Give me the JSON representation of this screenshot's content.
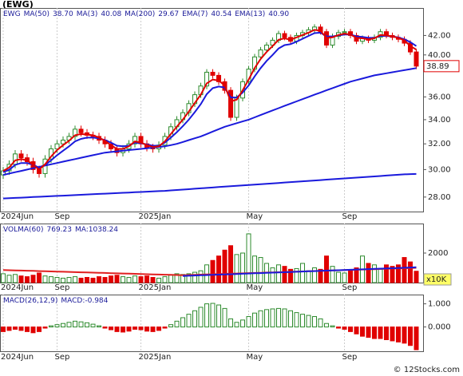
{
  "title": "(EWG)",
  "footer": "© 12Stocks.com",
  "chart_data": [
    {
      "type": "candlestick",
      "log_scale": true,
      "xgrid": true,
      "up_color": "#2e8b2e",
      "down_color": "#e00000",
      "header": [
        "EWG",
        "MA(50)",
        "38.70",
        "MA(3)",
        "40.08",
        "MA(200)",
        "29.67",
        "EMA(7)",
        "40.54",
        "EMA(13)",
        "40.90"
      ],
      "categories": [
        "2024Jun",
        null,
        null,
        null,
        null,
        null,
        null,
        null,
        null,
        "Sep",
        null,
        null,
        null,
        null,
        null,
        null,
        null,
        null,
        null,
        null,
        null,
        null,
        null,
        "2025Jan",
        null,
        null,
        null,
        null,
        null,
        null,
        null,
        null,
        null,
        null,
        null,
        null,
        null,
        null,
        null,
        null,
        null,
        "May",
        null,
        null,
        null,
        null,
        null,
        null,
        null,
        null,
        null,
        null,
        null,
        null,
        null,
        null,
        null,
        "Sep",
        null,
        null,
        null,
        null,
        null,
        null,
        null,
        null,
        null,
        null,
        null,
        null
      ],
      "open": [
        29.6,
        29.9,
        30.4,
        31.2,
        30.9,
        30.6,
        30.0,
        29.7,
        30.8,
        31.6,
        32.0,
        32.3,
        32.6,
        33.2,
        32.9,
        32.7,
        32.6,
        32.3,
        32.0,
        31.6,
        31.3,
        31.6,
        32.0,
        32.6,
        32.0,
        31.7,
        31.6,
        31.9,
        32.6,
        33.4,
        34.0,
        34.6,
        35.4,
        36.2,
        37.0,
        38.3,
        38.0,
        37.4,
        36.6,
        34.2,
        35.9,
        37.4,
        38.6,
        39.8,
        40.5,
        41.0,
        41.5,
        42.2,
        41.8,
        41.4,
        42.0,
        42.3,
        42.6,
        42.9,
        42.4,
        41.0,
        41.9,
        42.3,
        42.4,
        42.0,
        41.4,
        41.7,
        41.5,
        41.8,
        42.4,
        42.0,
        41.8,
        41.6,
        41.2,
        40.3
      ],
      "high": [
        30.2,
        30.7,
        31.5,
        31.5,
        31.2,
        30.9,
        30.3,
        31.1,
        31.9,
        32.3,
        32.6,
        32.9,
        33.5,
        33.5,
        33.2,
        33.0,
        32.9,
        32.6,
        32.3,
        31.9,
        31.9,
        32.3,
        32.9,
        32.9,
        32.3,
        32.0,
        32.2,
        32.9,
        33.7,
        34.3,
        34.9,
        35.7,
        36.5,
        37.3,
        38.6,
        38.6,
        38.3,
        37.7,
        36.9,
        36.2,
        37.7,
        38.9,
        40.1,
        40.8,
        41.3,
        41.8,
        42.5,
        42.5,
        42.1,
        42.3,
        42.6,
        42.9,
        43.2,
        43.2,
        42.7,
        42.2,
        42.6,
        42.7,
        42.7,
        42.3,
        42.0,
        42.0,
        42.1,
        42.7,
        42.7,
        42.3,
        42.1,
        41.9,
        41.5,
        40.6
      ],
      "low": [
        29.3,
        29.6,
        30.1,
        30.6,
        30.3,
        29.7,
        29.4,
        29.4,
        30.5,
        31.3,
        31.7,
        32.0,
        32.3,
        32.6,
        32.4,
        32.3,
        32.0,
        31.7,
        31.3,
        31.0,
        31.0,
        31.3,
        31.7,
        31.7,
        31.4,
        31.3,
        31.3,
        31.6,
        32.3,
        33.1,
        33.7,
        34.3,
        35.1,
        35.9,
        36.7,
        37.7,
        37.1,
        36.3,
        33.9,
        33.9,
        35.6,
        37.1,
        38.3,
        39.5,
        40.2,
        40.7,
        41.2,
        41.5,
        41.1,
        41.1,
        41.7,
        42.0,
        42.3,
        42.1,
        40.7,
        40.7,
        41.6,
        42.0,
        41.7,
        41.1,
        41.1,
        41.2,
        41.2,
        41.5,
        41.7,
        41.5,
        41.3,
        40.9,
        40.0,
        38.6
      ],
      "close": [
        29.9,
        30.4,
        31.2,
        30.9,
        30.6,
        30.0,
        29.7,
        30.8,
        31.6,
        32.0,
        32.3,
        32.6,
        33.2,
        32.9,
        32.7,
        32.6,
        32.3,
        32.0,
        31.6,
        31.3,
        31.6,
        32.0,
        32.6,
        32.0,
        31.7,
        31.6,
        31.9,
        32.6,
        33.4,
        34.0,
        34.6,
        35.4,
        36.2,
        37.0,
        38.3,
        38.0,
        37.4,
        36.6,
        34.2,
        35.9,
        37.4,
        38.6,
        39.8,
        40.5,
        41.0,
        41.5,
        42.2,
        41.8,
        41.4,
        42.0,
        42.3,
        42.6,
        42.9,
        42.4,
        41.0,
        41.9,
        42.3,
        42.4,
        42.0,
        41.4,
        41.7,
        41.5,
        41.8,
        42.4,
        42.0,
        41.8,
        41.6,
        41.2,
        40.3,
        38.89
      ],
      "series": [
        {
          "name": "MA(200)",
          "color": "#1a1adc",
          "width": 2,
          "values": [
            27.9,
            27.92,
            27.94,
            27.96,
            27.98,
            28.0,
            28.02,
            28.04,
            28.06,
            28.08,
            28.1,
            28.12,
            28.14,
            28.16,
            28.18,
            28.2,
            28.22,
            28.24,
            28.26,
            28.28,
            28.3,
            28.32,
            28.34,
            28.36,
            28.38,
            28.4,
            28.42,
            28.44,
            28.47,
            28.5,
            28.53,
            28.56,
            28.59,
            28.62,
            28.65,
            28.68,
            28.71,
            28.74,
            28.77,
            28.8,
            28.83,
            28.86,
            28.89,
            28.92,
            28.95,
            28.98,
            29.01,
            29.04,
            29.07,
            29.1,
            29.13,
            29.16,
            29.19,
            29.22,
            29.25,
            29.28,
            29.31,
            29.34,
            29.37,
            29.4,
            29.43,
            29.46,
            29.49,
            29.52,
            29.55,
            29.58,
            29.61,
            29.64,
            29.66,
            29.67
          ]
        },
        {
          "name": "MA(50)",
          "color": "#1a1adc",
          "width": 2,
          "values": [
            29.6,
            29.7,
            29.8,
            29.9,
            30.0,
            30.1,
            30.2,
            30.3,
            30.4,
            30.5,
            30.6,
            30.7,
            30.8,
            30.9,
            31.0,
            31.1,
            31.2,
            31.3,
            31.35,
            31.4,
            31.45,
            31.5,
            31.55,
            31.6,
            31.65,
            31.7,
            31.75,
            31.8,
            31.9,
            32.0,
            32.15,
            32.3,
            32.45,
            32.6,
            32.8,
            33.0,
            33.2,
            33.4,
            33.55,
            33.7,
            33.85,
            34.0,
            34.2,
            34.4,
            34.6,
            34.8,
            35.0,
            35.2,
            35.4,
            35.6,
            35.8,
            36.0,
            36.2,
            36.4,
            36.6,
            36.8,
            37.0,
            37.2,
            37.4,
            37.55,
            37.7,
            37.85,
            38.0,
            38.1,
            38.2,
            38.3,
            38.4,
            38.5,
            38.6,
            38.7
          ]
        },
        {
          "name": "EMA(13)",
          "color": "#1a1adc",
          "width": 2,
          "values": [
            29.8,
            29.98,
            30.35,
            30.5,
            30.5,
            30.35,
            30.15,
            30.35,
            30.7,
            31.1,
            31.45,
            31.8,
            32.2,
            32.4,
            32.5,
            32.5,
            32.45,
            32.3,
            32.1,
            31.85,
            31.8,
            31.85,
            32.1,
            32.05,
            31.95,
            31.85,
            31.85,
            32.1,
            32.5,
            32.95,
            33.45,
            34.0,
            34.65,
            35.35,
            36.25,
            36.8,
            36.95,
            36.85,
            35.95,
            35.95,
            36.4,
            37.05,
            37.9,
            38.7,
            39.4,
            40.0,
            40.65,
            41.0,
            41.1,
            41.35,
            41.65,
            41.95,
            42.25,
            42.3,
            41.9,
            41.9,
            42.0,
            42.1,
            42.1,
            41.9,
            41.85,
            41.75,
            41.75,
            41.95,
            41.95,
            41.9,
            41.8,
            41.6,
            41.3,
            40.9
          ]
        },
        {
          "name": "EMA(7)",
          "color": "#e00000",
          "width": 2,
          "values": [
            29.9,
            30.15,
            30.7,
            30.8,
            30.7,
            30.35,
            30.0,
            30.4,
            31.0,
            31.5,
            31.9,
            32.25,
            32.7,
            32.8,
            32.75,
            32.7,
            32.5,
            32.25,
            31.9,
            31.6,
            31.6,
            31.8,
            32.2,
            32.1,
            31.9,
            31.75,
            31.8,
            32.2,
            32.8,
            33.4,
            34.0,
            34.7,
            35.45,
            36.2,
            37.25,
            37.6,
            37.5,
            37.05,
            35.6,
            35.75,
            36.6,
            37.6,
            38.7,
            39.6,
            40.3,
            40.9,
            41.55,
            41.7,
            41.55,
            41.8,
            42.05,
            42.3,
            42.6,
            42.5,
            41.75,
            41.8,
            42.05,
            42.2,
            42.1,
            41.75,
            41.7,
            41.6,
            41.7,
            42.05,
            42.0,
            41.9,
            41.75,
            41.5,
            40.9,
            40.54
          ]
        }
      ],
      "ylim": [
        27.0,
        45.0
      ],
      "yticks": [
        {
          "value": 28,
          "label": "28.00"
        },
        {
          "value": 30,
          "label": "30.00"
        },
        {
          "value": 32,
          "label": "32.00"
        },
        {
          "value": 34,
          "label": "34.00"
        },
        {
          "value": 36,
          "label": "36.00"
        },
        {
          "value": 40,
          "label": "40.00"
        },
        {
          "value": 42,
          "label": "42.00"
        }
      ]
    },
    {
      "type": "bar",
      "xgrid": true,
      "up_color": "#2e8b2e",
      "down_color": "#e00000",
      "header": [
        "VOLMA(60)",
        "769.23",
        "MA:1038.24"
      ],
      "unit": "x10K",
      "values": [
        600,
        500,
        550,
        450,
        400,
        500,
        650,
        450,
        400,
        350,
        300,
        350,
        400,
        300,
        350,
        300,
        400,
        350,
        450,
        500,
        400,
        350,
        450,
        400,
        450,
        350,
        300,
        400,
        500,
        600,
        550,
        600,
        700,
        800,
        1200,
        1500,
        1800,
        2200,
        2500,
        1900,
        2000,
        3300,
        1800,
        1700,
        1300,
        1000,
        1200,
        1100,
        900,
        950,
        1300,
        800,
        1000,
        900,
        1800,
        1100,
        700,
        650,
        800,
        1000,
        1800,
        1300,
        1200,
        900,
        1200,
        1100,
        1200,
        1700,
        1400,
        769.23
      ],
      "series": [
        {
          "color": "#e02020",
          "width": 2,
          "values": [
            850,
            838,
            827,
            815,
            803,
            792,
            780,
            768,
            757,
            745,
            733,
            722,
            710,
            698,
            687,
            675,
            663,
            652,
            640,
            628,
            617,
            605,
            593,
            582,
            570,
            558,
            547,
            535,
            523,
            512,
            500,
            513,
            526,
            538,
            551,
            564,
            577,
            590,
            603,
            615,
            628,
            641,
            654,
            667,
            679,
            692,
            705,
            718,
            731,
            744,
            756,
            769,
            782,
            795,
            808,
            820,
            833,
            846,
            859,
            872,
            885,
            897,
            910,
            923,
            936,
            949,
            962,
            974,
            987,
            1000
          ]
        },
        {
          "color": "#1a1adc",
          "width": 2,
          "values": [
            null,
            null,
            null,
            null,
            null,
            null,
            null,
            null,
            null,
            null,
            null,
            null,
            null,
            null,
            null,
            null,
            null,
            null,
            null,
            null,
            null,
            null,
            null,
            null,
            null,
            null,
            null,
            null,
            null,
            null,
            450,
            465,
            480,
            495,
            510,
            525,
            540,
            555,
            570,
            585,
            600,
            615,
            630,
            645,
            660,
            675,
            690,
            705,
            720,
            735,
            750,
            765,
            780,
            795,
            810,
            825,
            840,
            855,
            870,
            885,
            900,
            915,
            930,
            945,
            960,
            975,
            990,
            1005,
            1020,
            1038.24
          ]
        }
      ],
      "ylim": [
        0,
        4000
      ],
      "yticks": [
        2000
      ]
    },
    {
      "type": "bar",
      "xgrid": true,
      "up_color": "#2e8b2e",
      "down_color": "#e00000",
      "header": [
        "MACD(26,12,9)",
        "MACD:-0.984"
      ],
      "values": [
        -0.2,
        -0.15,
        -0.1,
        -0.15,
        -0.2,
        -0.25,
        -0.2,
        -0.05,
        0.05,
        0.1,
        0.15,
        0.2,
        0.25,
        0.22,
        0.18,
        0.12,
        0.05,
        -0.05,
        -0.12,
        -0.2,
        -0.22,
        -0.18,
        -0.1,
        -0.12,
        -0.18,
        -0.2,
        -0.15,
        -0.05,
        0.1,
        0.25,
        0.4,
        0.55,
        0.7,
        0.85,
        1.0,
        1.02,
        0.95,
        0.8,
        0.35,
        0.2,
        0.3,
        0.45,
        0.6,
        0.7,
        0.75,
        0.78,
        0.8,
        0.78,
        0.7,
        0.62,
        0.55,
        0.5,
        0.45,
        0.35,
        0.15,
        0.05,
        -0.05,
        -0.1,
        -0.2,
        -0.3,
        -0.4,
        -0.45,
        -0.5,
        -0.5,
        -0.55,
        -0.6,
        -0.65,
        -0.7,
        -0.8,
        -0.984
      ],
      "ylim": [
        -1.05,
        1.4
      ],
      "yticks": [
        {
          "value": 0,
          "label": "0.000"
        },
        {
          "value": 1,
          "label": "1.000"
        }
      ]
    }
  ]
}
